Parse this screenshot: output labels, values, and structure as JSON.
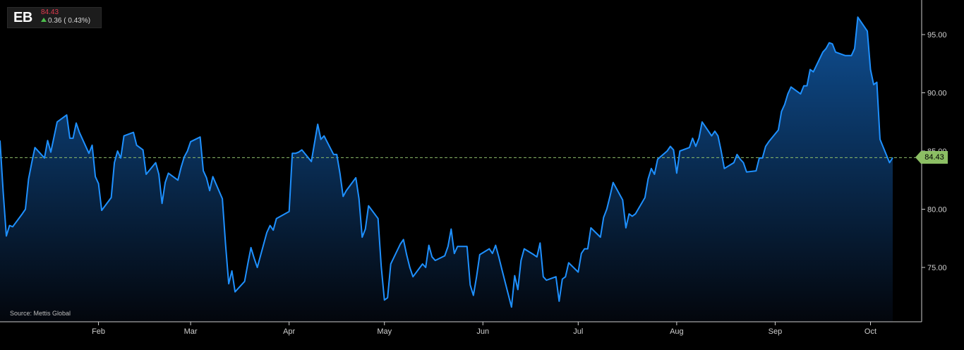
{
  "header": {
    "ticker": "EB",
    "price": "84.43",
    "change": "0.36 ( 0.43%)"
  },
  "source_text": "Source: Mettis Global",
  "last_value_label": "84.43",
  "colors": {
    "background": "#000000",
    "line": "#1e90ff",
    "fill_top": "#0f4f93",
    "fill_bottom": "#03060c",
    "axis": "#cccccc",
    "ref_line": "#8fbf6c",
    "badge": "#8cbf64",
    "price_text": "#e23a4e",
    "up_arrow": "#4cbc4c"
  },
  "chart_data": {
    "type": "area",
    "title": "",
    "xlabel": "",
    "ylabel": "",
    "ylim": [
      70.5,
      97.5
    ],
    "y_ticks": [
      75,
      80,
      85,
      90,
      95
    ],
    "y_tick_labels": [
      "75.00",
      "80.00",
      "85.00",
      "90.00",
      "95.00"
    ],
    "x_tick_labels": [
      "Feb",
      "Mar",
      "Apr",
      "May",
      "Jun",
      "Jul",
      "Aug",
      "Sep",
      "Oct"
    ],
    "x_tick_dates": [
      "2024-02-01",
      "2024-03-01",
      "2024-04-01",
      "2024-05-01",
      "2024-06-01",
      "2024-07-01",
      "2024-08-01",
      "2024-09-01",
      "2024-10-01"
    ],
    "reference_line": 84.43,
    "series": [
      {
        "x": [
          "2024-01-01",
          "2024-01-02",
          "2024-01-03",
          "2024-01-04",
          "2024-01-05",
          "2024-01-08",
          "2024-01-09",
          "2024-01-10",
          "2024-01-11",
          "2024-01-12",
          "2024-01-15",
          "2024-01-16",
          "2024-01-17",
          "2024-01-18",
          "2024-01-19",
          "2024-01-22",
          "2024-01-23",
          "2024-01-24",
          "2024-01-25",
          "2024-01-26",
          "2024-01-29",
          "2024-01-30",
          "2024-01-31",
          "2024-02-01",
          "2024-02-02",
          "2024-02-05",
          "2024-02-06",
          "2024-02-07",
          "2024-02-08",
          "2024-02-09",
          "2024-02-12",
          "2024-02-13",
          "2024-02-14",
          "2024-02-15",
          "2024-02-16",
          "2024-02-19",
          "2024-02-20",
          "2024-02-21",
          "2024-02-22",
          "2024-02-23",
          "2024-02-26",
          "2024-02-27",
          "2024-02-28",
          "2024-02-29",
          "2024-03-01",
          "2024-03-04",
          "2024-03-05",
          "2024-03-06",
          "2024-03-07",
          "2024-03-08",
          "2024-03-11",
          "2024-03-12",
          "2024-03-13",
          "2024-03-14",
          "2024-03-15",
          "2024-03-18",
          "2024-03-19",
          "2024-03-20",
          "2024-03-21",
          "2024-03-22",
          "2024-03-25",
          "2024-03-26",
          "2024-03-27",
          "2024-03-28",
          "2024-04-01",
          "2024-04-02",
          "2024-04-03",
          "2024-04-04",
          "2024-04-05",
          "2024-04-08",
          "2024-04-09",
          "2024-04-10",
          "2024-04-11",
          "2024-04-12",
          "2024-04-15",
          "2024-04-16",
          "2024-04-17",
          "2024-04-18",
          "2024-04-19",
          "2024-04-22",
          "2024-04-23",
          "2024-04-24",
          "2024-04-25",
          "2024-04-26",
          "2024-04-29",
          "2024-04-30",
          "2024-05-01",
          "2024-05-02",
          "2024-05-03",
          "2024-05-06",
          "2024-05-07",
          "2024-05-08",
          "2024-05-09",
          "2024-05-10",
          "2024-05-13",
          "2024-05-14",
          "2024-05-15",
          "2024-05-16",
          "2024-05-17",
          "2024-05-20",
          "2024-05-21",
          "2024-05-22",
          "2024-05-23",
          "2024-05-24",
          "2024-05-27",
          "2024-05-28",
          "2024-05-29",
          "2024-05-30",
          "2024-05-31",
          "2024-06-03",
          "2024-06-04",
          "2024-06-05",
          "2024-06-06",
          "2024-06-07",
          "2024-06-10",
          "2024-06-11",
          "2024-06-12",
          "2024-06-13",
          "2024-06-14",
          "2024-06-17",
          "2024-06-18",
          "2024-06-19",
          "2024-06-20",
          "2024-06-21",
          "2024-06-24",
          "2024-06-25",
          "2024-06-26",
          "2024-06-27",
          "2024-06-28",
          "2024-07-01",
          "2024-07-02",
          "2024-07-03",
          "2024-07-04",
          "2024-07-05",
          "2024-07-08",
          "2024-07-09",
          "2024-07-10",
          "2024-07-11",
          "2024-07-12",
          "2024-07-15",
          "2024-07-16",
          "2024-07-17",
          "2024-07-18",
          "2024-07-19",
          "2024-07-22",
          "2024-07-23",
          "2024-07-24",
          "2024-07-25",
          "2024-07-26",
          "2024-07-29",
          "2024-07-30",
          "2024-07-31",
          "2024-08-01",
          "2024-08-02",
          "2024-08-05",
          "2024-08-06",
          "2024-08-07",
          "2024-08-08",
          "2024-08-09",
          "2024-08-12",
          "2024-08-13",
          "2024-08-14",
          "2024-08-15",
          "2024-08-16",
          "2024-08-19",
          "2024-08-20",
          "2024-08-21",
          "2024-08-22",
          "2024-08-23",
          "2024-08-26",
          "2024-08-27",
          "2024-08-28",
          "2024-08-29",
          "2024-08-30",
          "2024-09-02",
          "2024-09-03",
          "2024-09-04",
          "2024-09-05",
          "2024-09-06",
          "2024-09-09",
          "2024-09-10",
          "2024-09-11",
          "2024-09-12",
          "2024-09-13",
          "2024-09-16",
          "2024-09-17",
          "2024-09-18",
          "2024-09-19",
          "2024-09-20",
          "2024-09-23",
          "2024-09-24",
          "2024-09-25",
          "2024-09-26",
          "2024-09-27",
          "2024-09-30",
          "2024-10-01",
          "2024-10-02",
          "2024-10-03",
          "2024-10-04",
          "2024-10-07",
          "2024-10-08"
        ],
        "values": [
          85.9,
          81.5,
          77.7,
          78.6,
          78.5,
          79.6,
          80.0,
          82.6,
          84.0,
          85.3,
          84.4,
          85.9,
          84.9,
          86.2,
          87.5,
          88.1,
          86.1,
          86.1,
          87.4,
          86.6,
          84.8,
          85.5,
          82.8,
          82.2,
          79.9,
          81.0,
          84.0,
          85.0,
          84.4,
          86.3,
          86.6,
          85.5,
          85.3,
          85.1,
          83.0,
          84.0,
          83.0,
          80.5,
          82.3,
          83.1,
          82.5,
          83.6,
          84.5,
          85.0,
          85.8,
          86.2,
          83.3,
          82.7,
          81.6,
          82.8,
          80.9,
          77.0,
          73.6,
          74.7,
          72.9,
          73.8,
          75.3,
          76.7,
          75.8,
          75.0,
          78.0,
          78.6,
          78.2,
          79.2,
          79.8,
          84.8,
          84.8,
          84.9,
          85.1,
          84.1,
          85.7,
          87.3,
          86.0,
          86.3,
          84.7,
          84.7,
          83.1,
          81.1,
          81.6,
          82.7,
          80.9,
          77.6,
          78.3,
          80.3,
          79.2,
          75.1,
          72.2,
          72.4,
          75.3,
          77.0,
          77.4,
          76.1,
          75.0,
          74.2,
          75.3,
          75.0,
          76.9,
          75.9,
          75.6,
          76.0,
          76.8,
          78.3,
          76.2,
          76.8,
          76.8,
          73.5,
          72.6,
          74.2,
          76.1,
          76.6,
          76.2,
          76.9,
          75.9,
          74.8,
          71.6,
          74.3,
          73.1,
          75.6,
          76.6,
          76.1,
          75.9,
          77.1,
          74.2,
          73.9,
          74.2,
          72.1,
          74.0,
          74.2,
          75.4,
          74.6,
          76.2,
          76.6,
          76.6,
          78.4,
          77.6,
          79.3,
          80.0,
          81.1,
          82.3,
          80.8,
          78.4,
          79.6,
          79.4,
          79.6,
          81.0,
          82.6,
          83.5,
          83.0,
          84.3,
          85.0,
          85.4,
          85.1,
          83.1,
          85.0,
          85.3,
          86.1,
          85.4,
          86.1,
          87.5,
          86.3,
          86.7,
          86.3,
          85.0,
          83.5,
          84.0,
          84.7,
          84.3,
          84.0,
          83.2,
          83.3,
          84.4,
          84.4,
          85.4,
          85.8,
          86.8,
          88.4,
          89.0,
          89.9,
          90.5,
          89.9,
          90.6,
          90.6,
          92.0,
          91.8,
          93.5,
          93.8,
          94.3,
          94.2,
          93.5,
          93.2,
          93.2,
          93.2,
          93.8,
          96.5,
          95.3,
          92.0,
          90.7,
          90.9,
          86.0,
          84.0,
          84.43
        ]
      }
    ]
  }
}
